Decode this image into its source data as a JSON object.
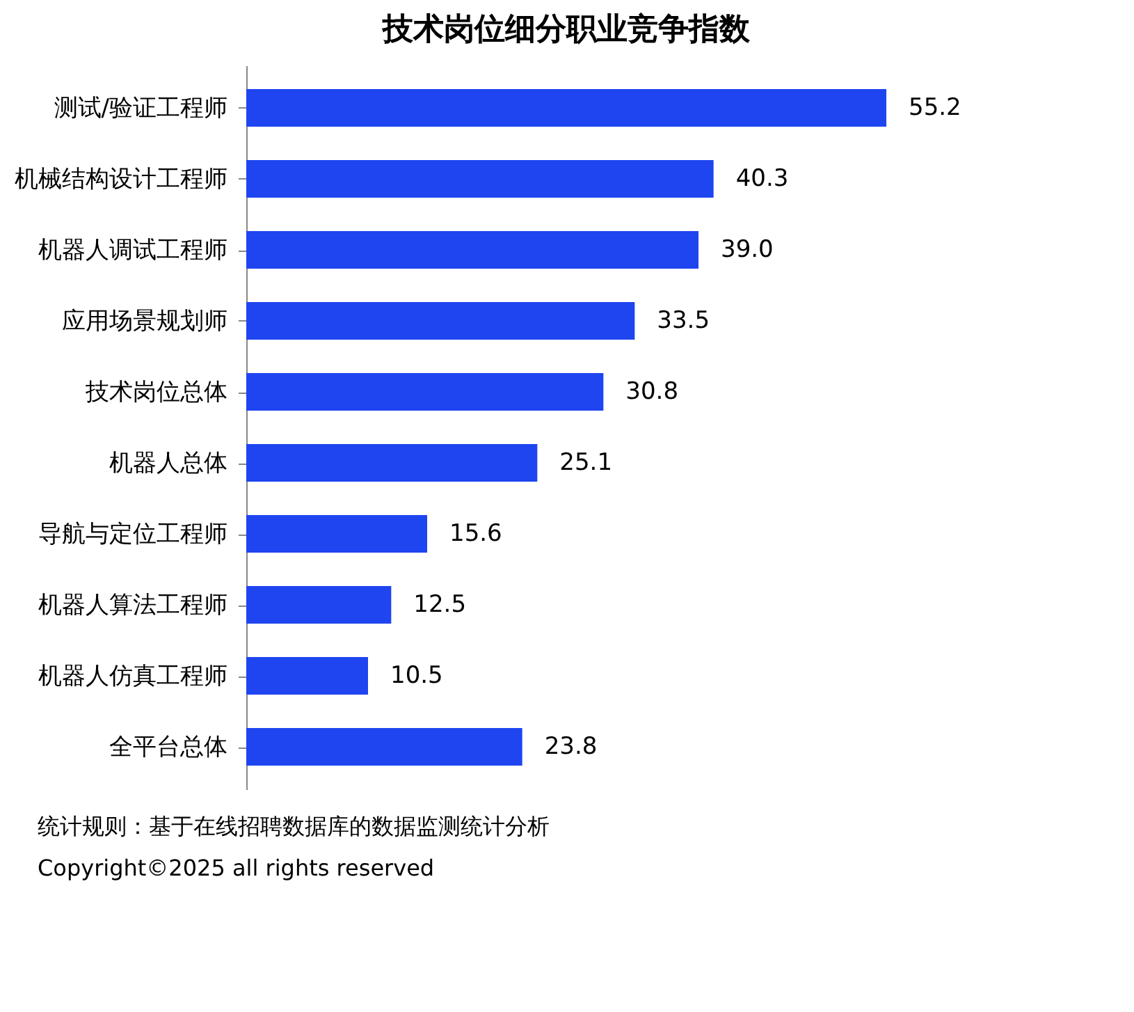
{
  "chart_data": {
    "type": "bar",
    "orientation": "horizontal",
    "title": "技术岗位细分职业竞争指数",
    "categories": [
      "测试/验证工程师",
      "机械结构设计工程师",
      "机器人调试工程师",
      "应用场景规划师",
      "技术岗位总体",
      "机器人总体",
      "导航与定位工程师",
      "机器人算法工程师",
      "机器人仿真工程师",
      "全平台总体"
    ],
    "values": [
      55.2,
      40.3,
      39.0,
      33.5,
      30.8,
      25.1,
      15.6,
      12.5,
      10.5,
      23.8
    ],
    "value_labels": [
      "55.2",
      "40.3",
      "39.0",
      "33.5",
      "30.8",
      "25.1",
      "15.6",
      "12.5",
      "10.5",
      "23.8"
    ],
    "color": "#1f45f0",
    "grid": false,
    "tick_labels": "y",
    "annotations": [
      "统计规则：基于在线招聘数据库的数据监测统计分析",
      "Copyright©2025 all rights reserved"
    ]
  }
}
